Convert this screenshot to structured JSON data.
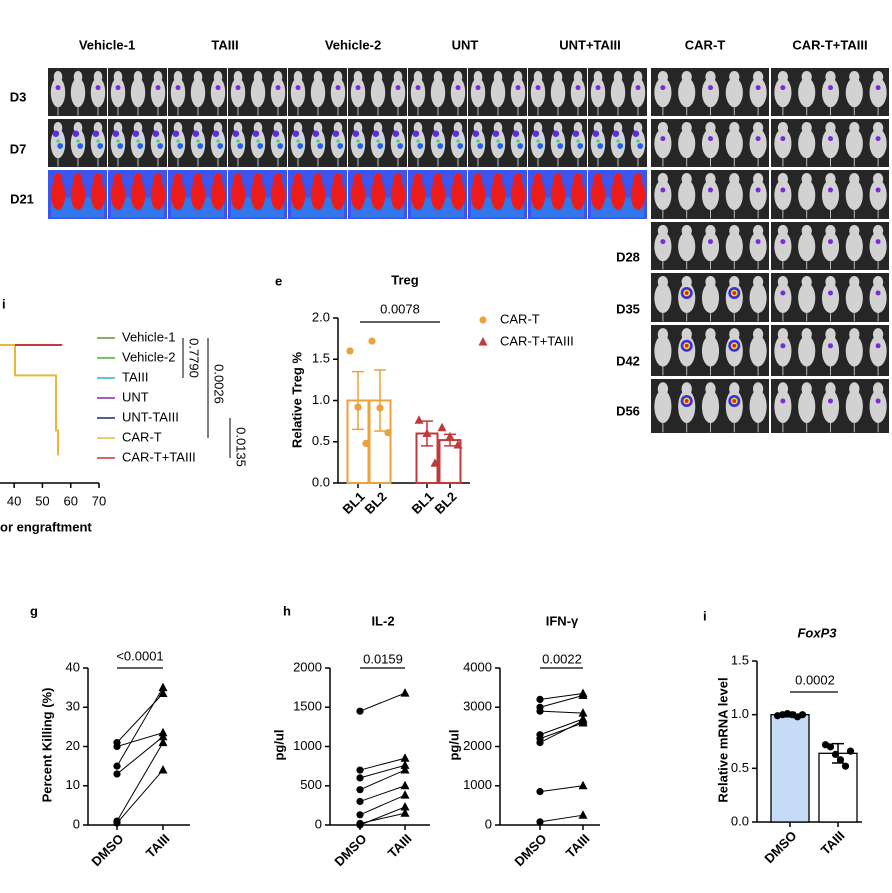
{
  "imaging": {
    "groups": [
      "Vehicle-1",
      "TAIII",
      "Vehicle-2",
      "UNT",
      "UNT+TAIII",
      "CAR-T",
      "CAR-T+TAIII"
    ],
    "days": [
      "D3",
      "D7",
      "D21"
    ],
    "days_extended": [
      "D28",
      "D35",
      "D42",
      "D56"
    ]
  },
  "chart_data": [
    {
      "type": "line",
      "panel": "i",
      "xlabel": "or engraftment",
      "xlim": [
        35,
        70
      ],
      "xticks": [
        40,
        50,
        60,
        70
      ],
      "ylim": [
        0,
        100
      ],
      "series": [
        {
          "name": "Vehicle-1",
          "color": "#6b8e3a",
          "x": [],
          "values": []
        },
        {
          "name": "Vehicle-2",
          "color": "#4fae3c",
          "x": [],
          "values": []
        },
        {
          "name": "TAIII",
          "color": "#2fb3c2",
          "x": [],
          "values": []
        },
        {
          "name": "UNT",
          "color": "#8a2aa8",
          "x": [],
          "values": []
        },
        {
          "name": "UNT-TAIII",
          "color": "#1b2a6e",
          "x": [],
          "values": []
        },
        {
          "name": "CAR-T",
          "color": "#e8b83a",
          "x": [
            35,
            40.3,
            40.3,
            54.8,
            54.8,
            55.5,
            55.5
          ],
          "values": [
            100,
            100,
            78,
            78,
            38,
            38,
            20
          ]
        },
        {
          "name": "CAR-T+TAIII",
          "color": "#c8383a",
          "x": [
            40.3,
            57
          ],
          "values": [
            100,
            100
          ]
        }
      ],
      "annotations": [
        "0.7790",
        "0.0026",
        "0.0135"
      ]
    },
    {
      "type": "bar",
      "panel": "e",
      "title": "Treg",
      "ylabel": "Relative Treg %",
      "ylim": [
        0,
        2
      ],
      "yticks": [
        {
          "value": 0,
          "label": "0.0"
        },
        {
          "value": 0.5,
          "label": "0.5"
        },
        {
          "value": 1,
          "label": "1.0"
        },
        {
          "value": 1.5,
          "label": "1.5"
        },
        {
          "value": 2,
          "label": "2.0"
        }
      ],
      "categories": [
        "BL1",
        "BL2",
        "BL1",
        "BL2"
      ],
      "series": [
        {
          "name": "CAR-T",
          "color": "#eba23a",
          "marker": "circle",
          "values": [
            1.0,
            1.0,
            null,
            null
          ],
          "errors": [
            0.35,
            0.37,
            null,
            null
          ],
          "points": [
            [
              1.6,
              0.92,
              0.48
            ],
            [
              1.72,
              0.91,
              0.61
            ],
            null,
            null
          ]
        },
        {
          "name": "CAR-T+TAIII",
          "color": "#c0393b",
          "marker": "triangle",
          "values": [
            null,
            null,
            0.6,
            0.52
          ],
          "errors": [
            null,
            null,
            0.15,
            0.07
          ],
          "points": [
            null,
            null,
            [
              0.76,
              0.6,
              0.24
            ],
            [
              0.67,
              0.56,
              0.46
            ]
          ]
        }
      ],
      "annotation": "0.0078"
    },
    {
      "type": "paired",
      "panel": "g",
      "ylabel": "Percent Killing (%)",
      "ylim": [
        0,
        40
      ],
      "yticks": [
        0,
        10,
        20,
        30,
        40
      ],
      "categories": [
        "DMSO",
        "TAIII"
      ],
      "pairs": [
        [
          21,
          33.5
        ],
        [
          20,
          23.5
        ],
        [
          15,
          35
        ],
        [
          13,
          22.5
        ],
        [
          1,
          21
        ],
        [
          0.5,
          14
        ]
      ],
      "annotation": "<0.0001"
    },
    {
      "type": "paired",
      "panel": "h",
      "title": "IL-2",
      "ylabel": "pg/ul",
      "ylim": [
        0,
        2000
      ],
      "yticks": [
        0,
        500,
        1000,
        1500,
        2000
      ],
      "categories": [
        "DMSO",
        "TAIII"
      ],
      "pairs": [
        [
          1450,
          1680
        ],
        [
          700,
          850
        ],
        [
          600,
          760
        ],
        [
          450,
          700
        ],
        [
          300,
          500
        ],
        [
          130,
          380
        ],
        [
          0,
          230
        ],
        [
          20,
          150
        ]
      ],
      "annotation": "0.0159"
    },
    {
      "type": "paired",
      "title": "IFN-γ",
      "ylabel": "pg/ul",
      "ylim": [
        0,
        4000
      ],
      "yticks": [
        0,
        1000,
        2000,
        3000,
        4000
      ],
      "categories": [
        "DMSO",
        "TAIII"
      ],
      "pairs": [
        [
          3200,
          3350
        ],
        [
          3000,
          3300
        ],
        [
          2900,
          2850
        ],
        [
          2300,
          2700
        ],
        [
          2200,
          2600
        ],
        [
          2100,
          2650
        ],
        [
          850,
          1000
        ],
        [
          80,
          250
        ]
      ],
      "annotation": "0.0022"
    },
    {
      "type": "bar",
      "panel": "i",
      "title": "FoxP3",
      "ylabel": "Relative mRNA level",
      "ylim": [
        0,
        1.5
      ],
      "yticks": [
        {
          "value": 0,
          "label": "0.0"
        },
        {
          "value": 0.5,
          "label": "0.5"
        },
        {
          "value": 1,
          "label": "1.0"
        },
        {
          "value": 1.5,
          "label": "1.5"
        }
      ],
      "categories": [
        "DMSO",
        "TAIII"
      ],
      "values": [
        1.0,
        0.64
      ],
      "errors": [
        0.02,
        0.09
      ],
      "colors": [
        "#c6dcf6",
        "#ffffff"
      ],
      "points": [
        [
          0.99,
          1.0,
          1.01,
          1.0,
          0.98,
          1.0
        ],
        [
          0.72,
          0.7,
          0.63,
          0.58,
          0.52,
          0.66
        ]
      ],
      "annotation": "0.0002"
    }
  ]
}
